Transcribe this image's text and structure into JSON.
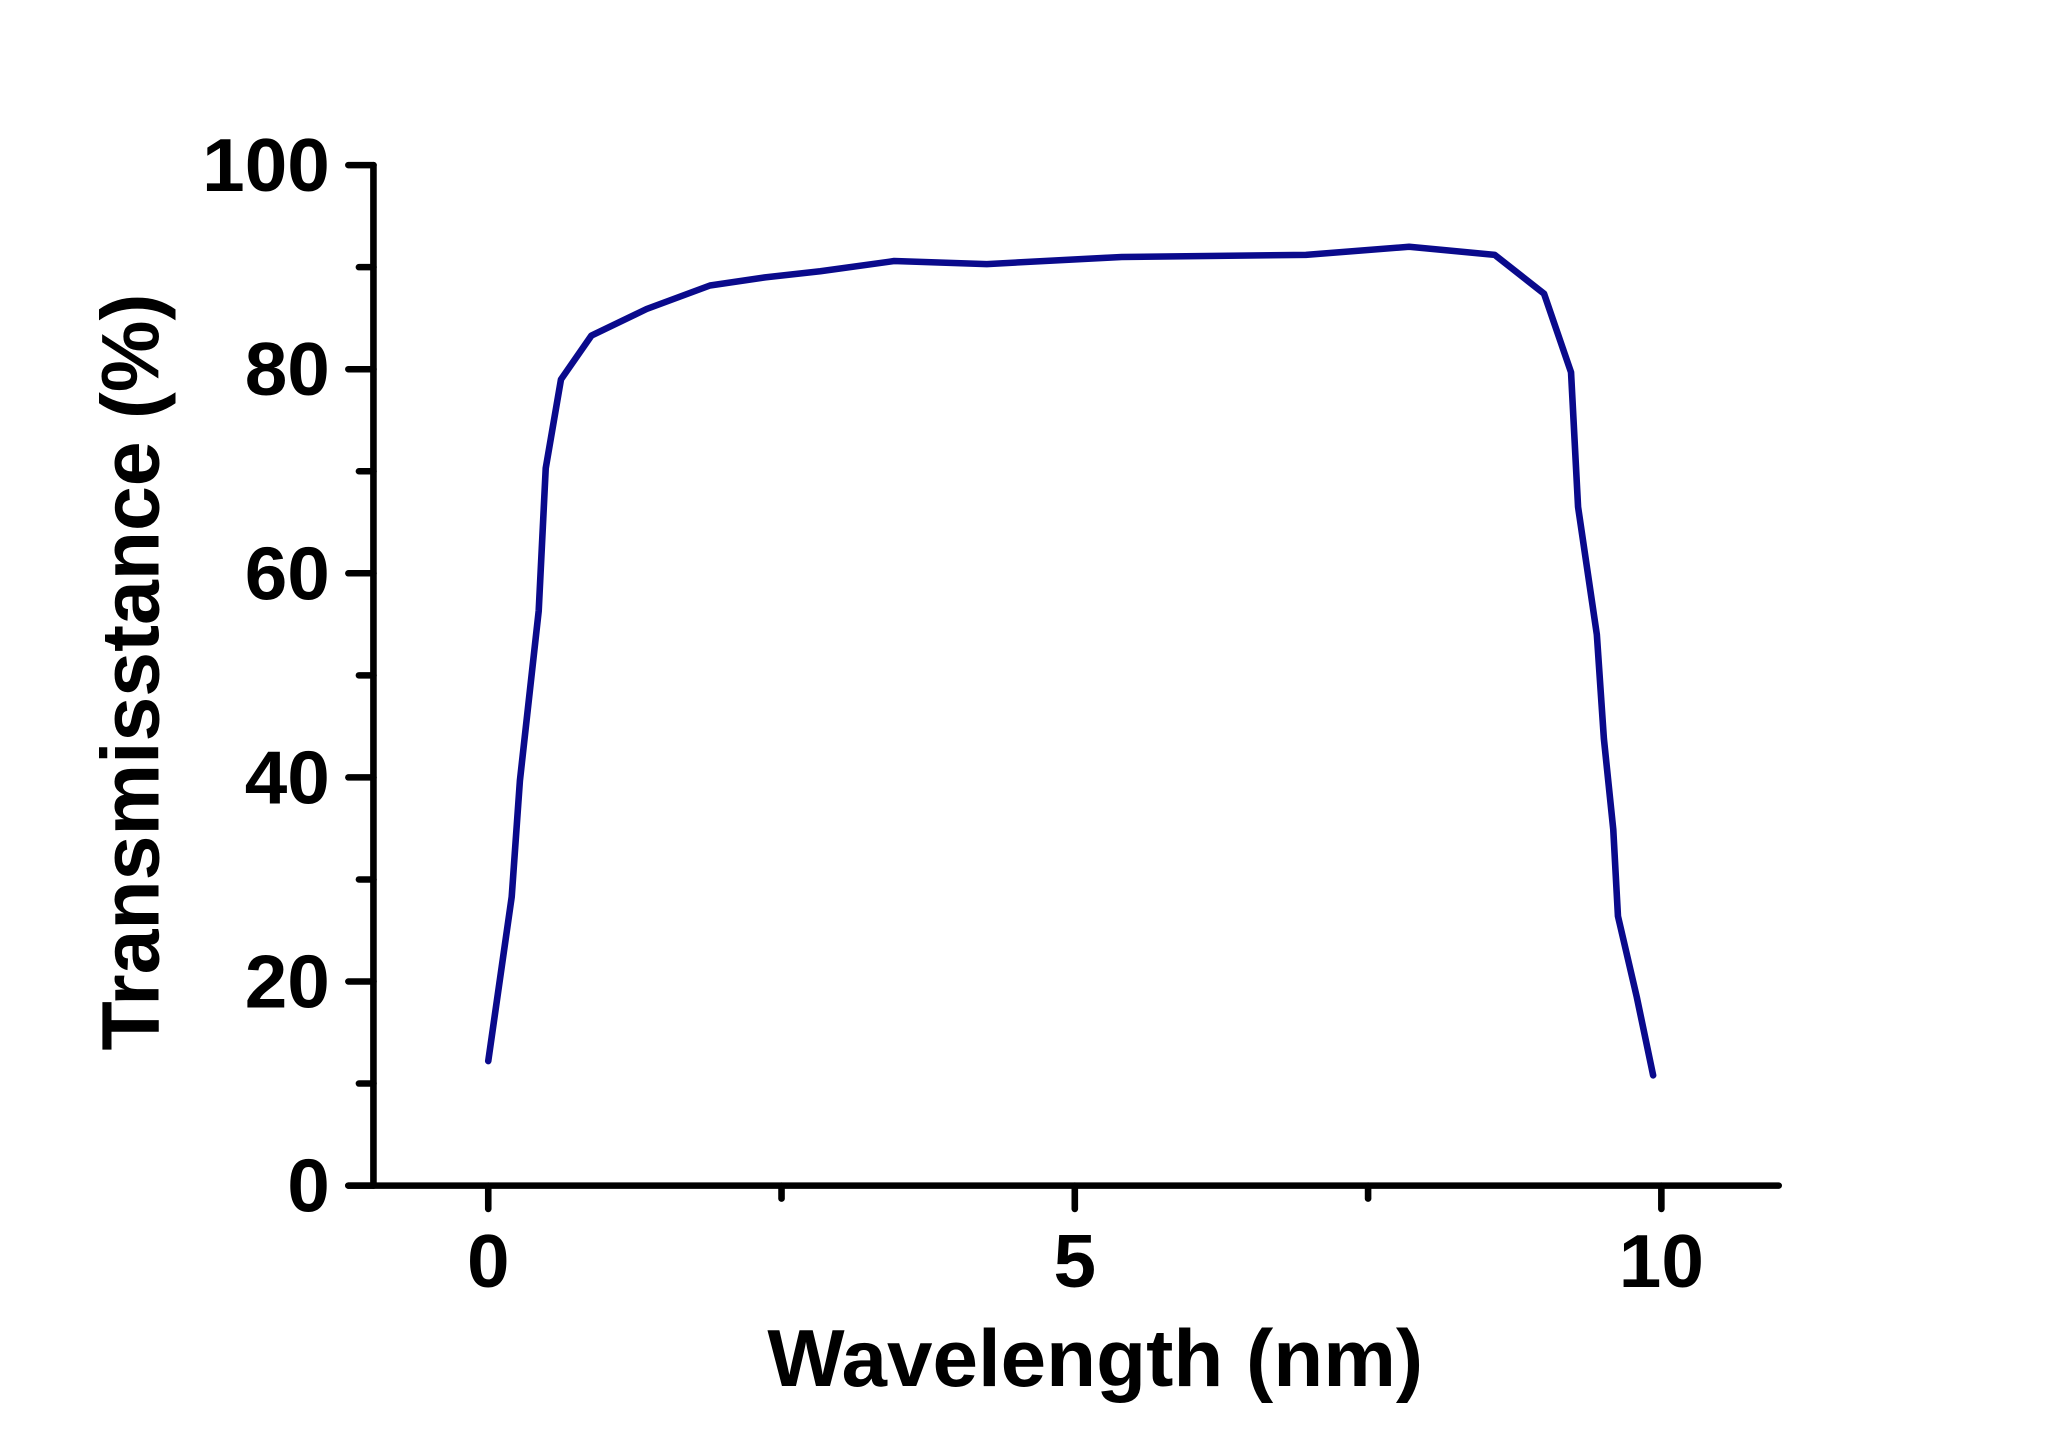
{
  "chart_data": {
    "type": "line",
    "title": "",
    "xlabel": "Wavelength (nm)",
    "ylabel": "Transmisstance (%)",
    "xlim": [
      -1.2,
      11
    ],
    "ylim": [
      0,
      100
    ],
    "x_ticks": [
      0,
      5,
      10
    ],
    "x_tick_labels": [
      "0",
      "5",
      "10"
    ],
    "x_minor_ticks": [
      2.5,
      7.5
    ],
    "y_ticks": [
      0,
      20,
      40,
      60,
      80,
      100
    ],
    "y_tick_labels": [
      "0",
      "20",
      "40",
      "60",
      "80",
      "100"
    ],
    "y_minor_ticks": [
      10,
      30,
      50,
      70,
      90
    ],
    "grid": false,
    "colors": {
      "line": "#0a0a8c",
      "axis": "#000000"
    },
    "series": [
      {
        "x": [
          0,
          0.2,
          0.27,
          0.43,
          0.49,
          0.62,
          0.88,
          1.35,
          1.89,
          2.36,
          2.83,
          3.46,
          4.25,
          5.4,
          6.97,
          7.85,
          8.58,
          9.0,
          9.23,
          9.29,
          9.45,
          9.51,
          9.59,
          9.63,
          9.79,
          9.93
        ],
        "y": [
          12.2,
          28.3,
          39.7,
          56.3,
          70.3,
          79.0,
          83.3,
          85.9,
          88.2,
          89.0,
          89.6,
          90.6,
          90.3,
          91.0,
          91.2,
          92.0,
          91.2,
          87.4,
          79.7,
          66.5,
          54.0,
          43.8,
          34.9,
          26.4,
          18.5,
          10.8
        ]
      }
    ]
  }
}
